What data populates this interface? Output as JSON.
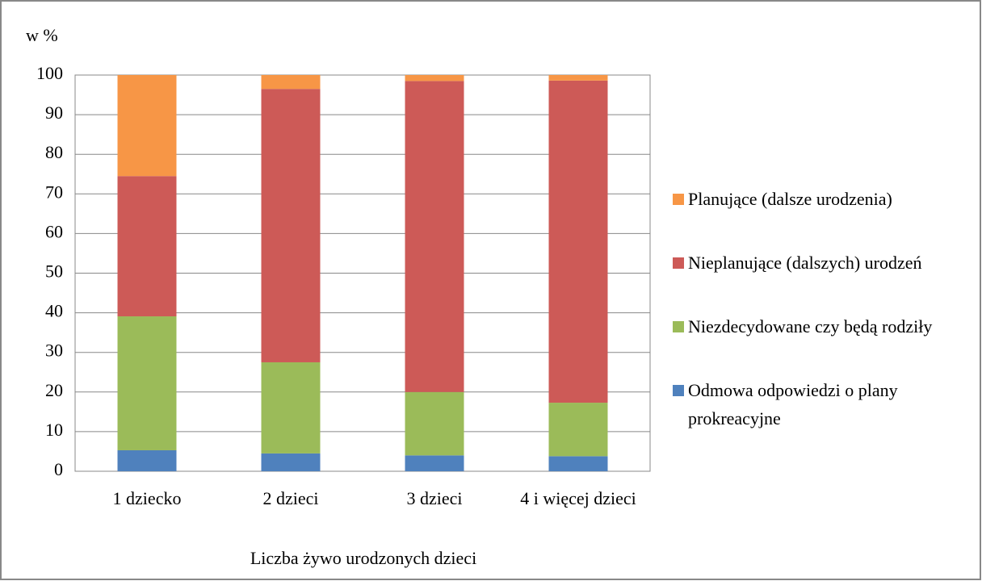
{
  "chart_data": {
    "type": "stacked_bar",
    "y_label": "w %",
    "x_label": "Liczba żywo urodzonych dzieci",
    "categories": [
      "1 dziecko",
      "2 dzieci",
      "3 dzieci",
      "4 i więcej dzieci"
    ],
    "series": [
      {
        "name": "Odmowa odpowiedzi o plany prokreacyjne",
        "color": "#4f81bd",
        "values": [
          5.3,
          4.5,
          4.0,
          3.8
        ]
      },
      {
        "name": "Niezdecydowane czy będą rodziły",
        "color": "#9bbb59",
        "values": [
          33.8,
          23.0,
          16.0,
          13.5
        ]
      },
      {
        "name": "Nieplanujące (dalszych) urodzeń",
        "color": "#cd5a57",
        "values": [
          35.4,
          69.0,
          78.5,
          81.3
        ]
      },
      {
        "name": "Planujące (dalsze urodzenia)",
        "color": "#f79646",
        "values": [
          25.5,
          3.5,
          1.5,
          1.4
        ]
      }
    ],
    "ylim": [
      0,
      100
    ],
    "yticks": [
      0,
      10,
      20,
      30,
      40,
      50,
      60,
      70,
      80,
      90,
      100
    ],
    "grid": true,
    "legend": "right"
  }
}
